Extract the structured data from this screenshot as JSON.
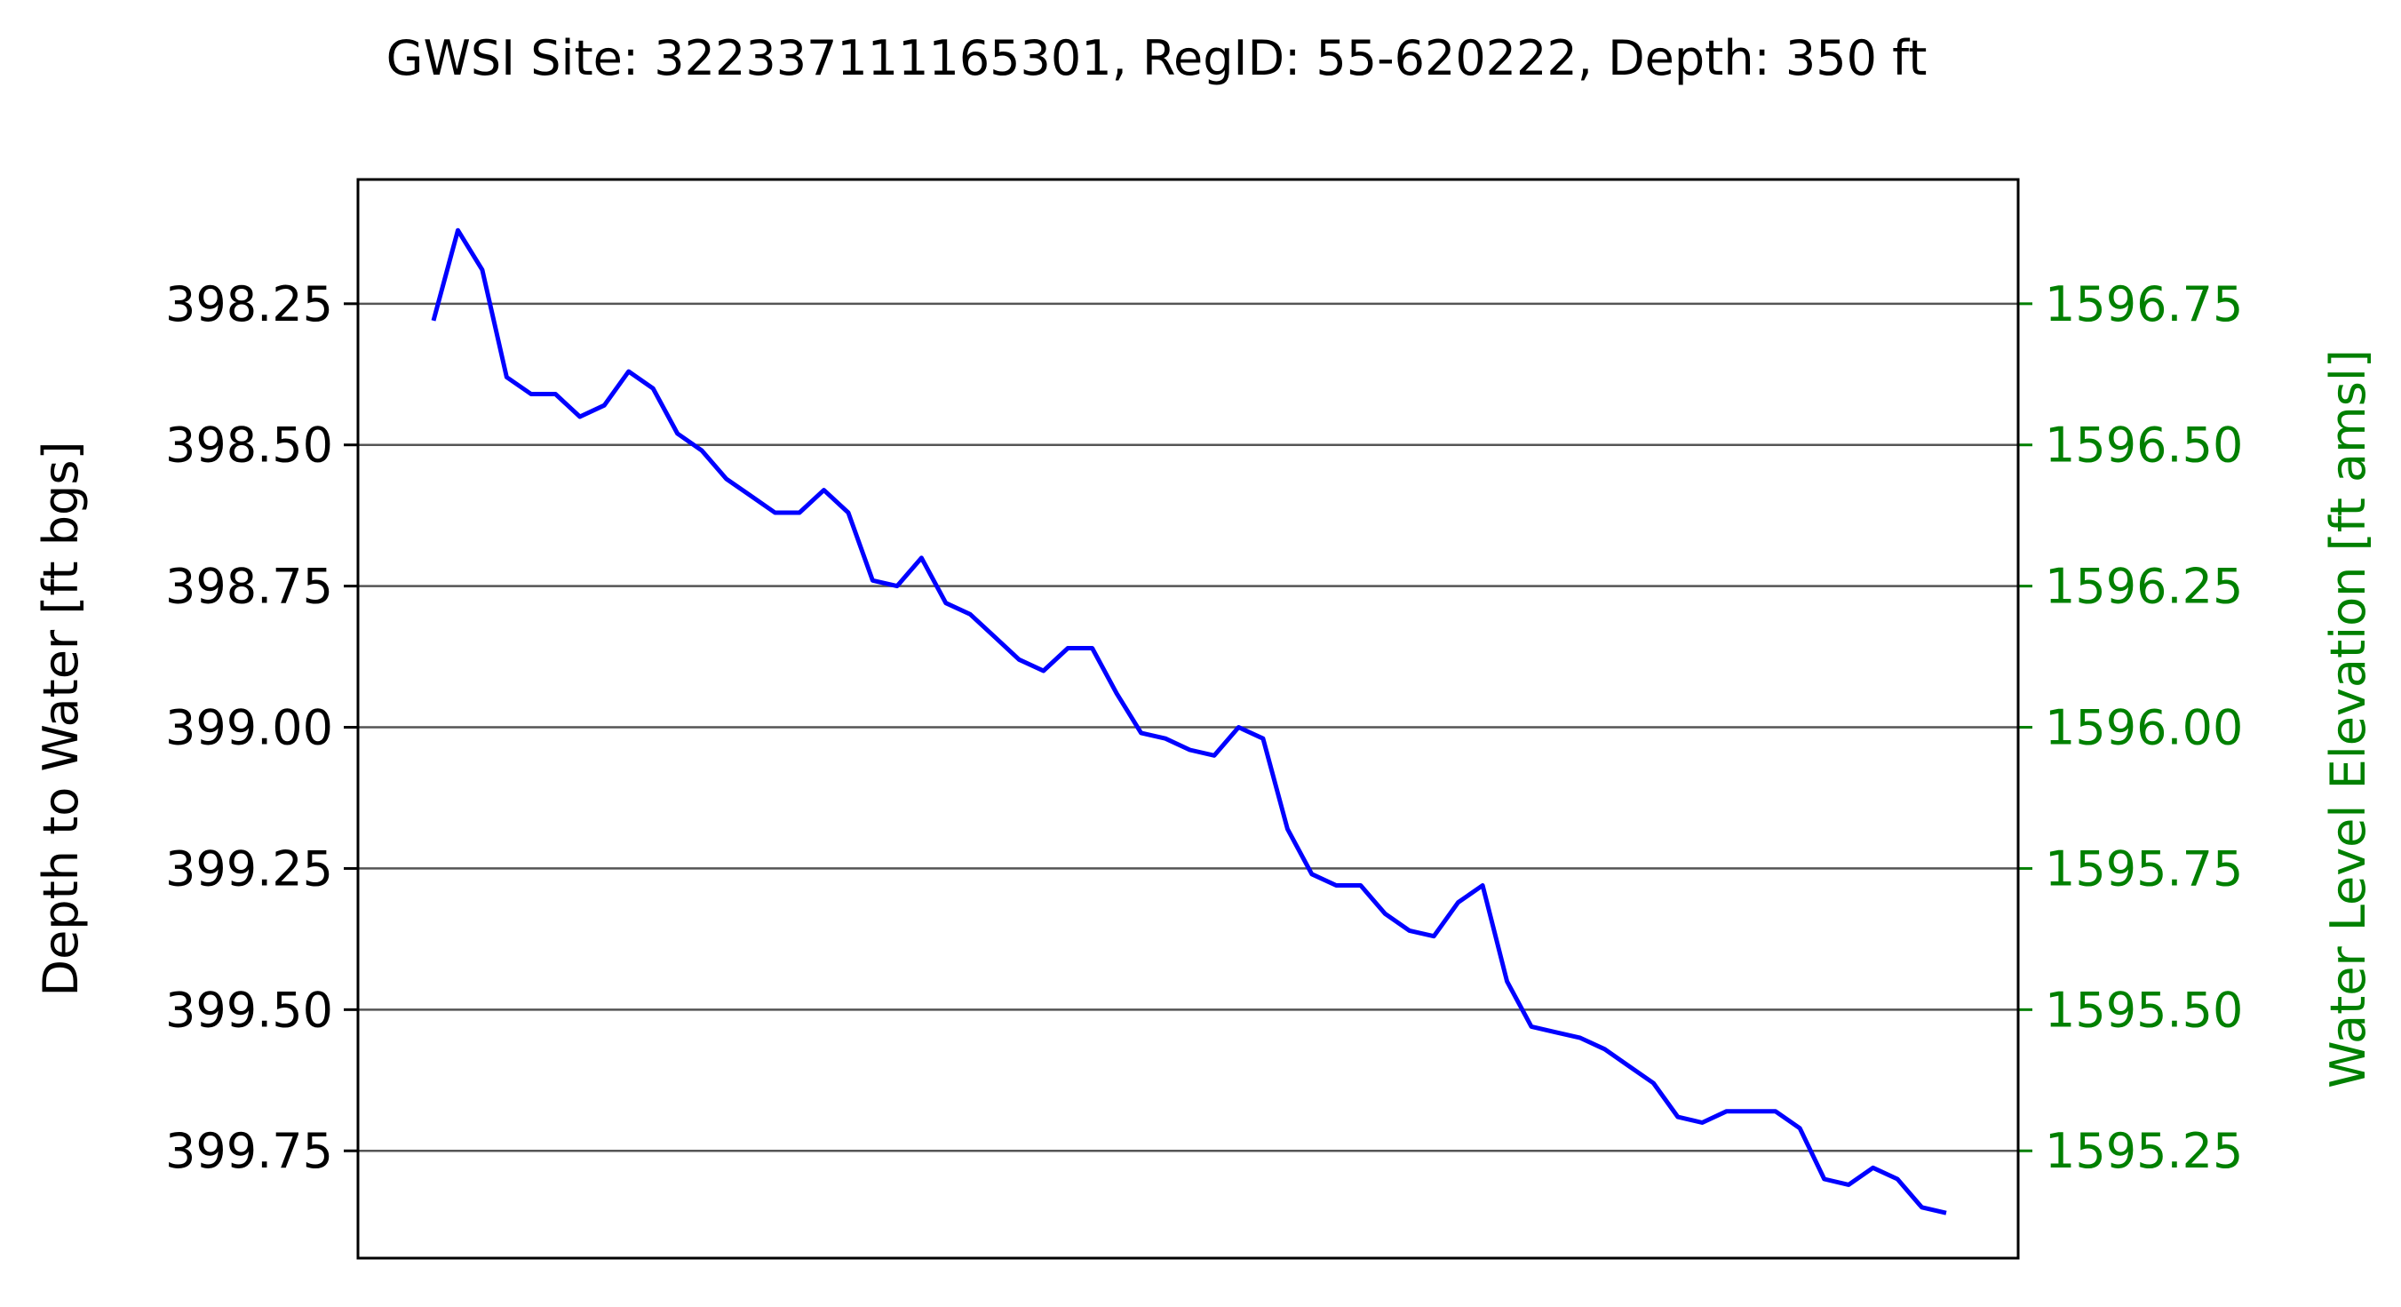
{
  "chart_data": {
    "type": "line",
    "title": "GWSI Site: 322337111165301, RegID: 55-620222, Depth: 350 ft",
    "ylabel": "Depth to Water [ft bgs]",
    "ylabel_right": "Water Level Elevation [ft amsl]",
    "y_inverted": true,
    "ylim": [
      399.94,
      398.03
    ],
    "ylim_right": [
      1595.06,
      1596.97
    ],
    "grid": "horizontal",
    "y_ticks": [
      398.25,
      398.5,
      398.75,
      399.0,
      399.25,
      399.5,
      399.75
    ],
    "y_tick_labels": [
      "398.25",
      "398.50",
      "398.75",
      "399.00",
      "399.25",
      "399.50",
      "399.75"
    ],
    "y_right_ticks": [
      1596.75,
      1596.5,
      1596.25,
      1596.0,
      1595.75,
      1595.5,
      1595.25
    ],
    "y_right_tick_labels": [
      "1596.75",
      "1596.50",
      "1596.25",
      "1596.00",
      "1595.75",
      "1595.50",
      "1595.25"
    ],
    "colors": {
      "line": "#0000ff",
      "right_axis": "#008000",
      "grid": "#555555",
      "axis": "#000000"
    },
    "series": [
      {
        "values": [
          398.28,
          398.12,
          398.19,
          398.38,
          398.41,
          398.41,
          398.45,
          398.43,
          398.37,
          398.4,
          398.48,
          398.51,
          398.56,
          398.59,
          398.62,
          398.62,
          398.58,
          398.62,
          398.74,
          398.75,
          398.7,
          398.78,
          398.8,
          398.84,
          398.88,
          398.9,
          398.86,
          398.86,
          398.94,
          399.01,
          399.02,
          399.04,
          399.05,
          399.0,
          399.02,
          399.18,
          399.26,
          399.28,
          399.28,
          399.33,
          399.36,
          399.37,
          399.31,
          399.28,
          399.45,
          399.53,
          399.54,
          399.55,
          399.57,
          399.6,
          399.63,
          399.69,
          399.7,
          399.68,
          399.68,
          399.68,
          399.71,
          399.8,
          399.81,
          399.78,
          399.8,
          399.85,
          399.86
        ]
      }
    ]
  }
}
